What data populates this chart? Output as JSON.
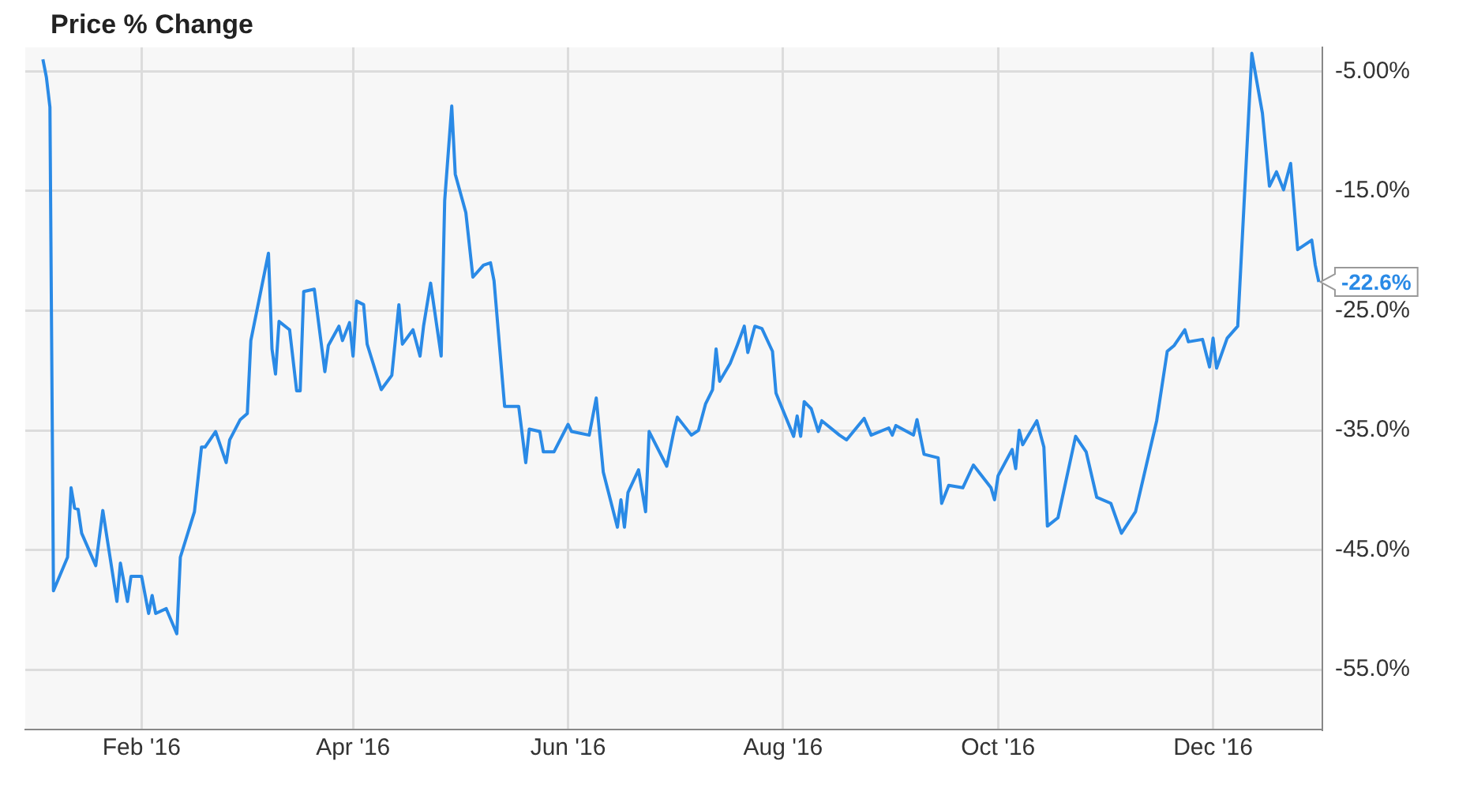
{
  "chart_data": {
    "type": "line",
    "title": "Price % Change",
    "x": [
      "2016-01-04",
      "2016-01-05",
      "2016-01-06",
      "2016-01-07",
      "2016-01-11",
      "2016-01-12",
      "2016-01-13",
      "2016-01-14",
      "2016-01-15",
      "2016-01-19",
      "2016-01-21",
      "2016-01-25",
      "2016-01-26",
      "2016-01-28",
      "2016-01-29",
      "2016-02-01",
      "2016-02-03",
      "2016-02-04",
      "2016-02-05",
      "2016-02-08",
      "2016-02-11",
      "2016-02-12",
      "2016-02-16",
      "2016-02-18",
      "2016-02-19",
      "2016-02-22",
      "2016-02-25",
      "2016-02-26",
      "2016-02-29",
      "2016-03-02",
      "2016-03-03",
      "2016-03-08",
      "2016-03-09",
      "2016-03-10",
      "2016-03-11",
      "2016-03-14",
      "2016-03-16",
      "2016-03-17",
      "2016-03-18",
      "2016-03-21",
      "2016-03-24",
      "2016-03-25",
      "2016-03-28",
      "2016-03-29",
      "2016-03-31",
      "2016-04-01",
      "2016-04-02",
      "2016-04-04",
      "2016-04-05",
      "2016-04-09",
      "2016-04-12",
      "2016-04-14",
      "2016-04-15",
      "2016-04-18",
      "2016-04-20",
      "2016-04-21",
      "2016-04-23",
      "2016-04-26",
      "2016-04-27",
      "2016-04-29",
      "2016-04-30",
      "2016-05-03",
      "2016-05-05",
      "2016-05-08",
      "2016-05-10",
      "2016-05-11",
      "2016-05-14",
      "2016-05-18",
      "2016-05-20",
      "2016-05-21",
      "2016-05-24",
      "2016-05-25",
      "2016-05-28",
      "2016-06-01",
      "2016-06-02",
      "2016-06-07",
      "2016-06-09",
      "2016-06-11",
      "2016-06-15",
      "2016-06-16",
      "2016-06-17",
      "2016-06-18",
      "2016-06-21",
      "2016-06-23",
      "2016-06-24",
      "2016-06-29",
      "2016-07-01",
      "2016-07-02",
      "2016-07-06",
      "2016-07-08",
      "2016-07-10",
      "2016-07-12",
      "2016-07-13",
      "2016-07-14",
      "2016-07-17",
      "2016-07-19",
      "2016-07-21",
      "2016-07-22",
      "2016-07-24",
      "2016-07-26",
      "2016-07-29",
      "2016-07-30",
      "2016-08-04",
      "2016-08-05",
      "2016-08-06",
      "2016-08-07",
      "2016-08-09",
      "2016-08-11",
      "2016-08-12",
      "2016-08-17",
      "2016-08-19",
      "2016-08-24",
      "2016-08-26",
      "2016-08-31",
      "2016-09-01",
      "2016-09-02",
      "2016-09-07",
      "2016-09-08",
      "2016-09-10",
      "2016-09-14",
      "2016-09-15",
      "2016-09-17",
      "2016-09-21",
      "2016-09-24",
      "2016-09-29",
      "2016-09-30",
      "2016-10-01",
      "2016-10-05",
      "2016-10-06",
      "2016-10-07",
      "2016-10-08",
      "2016-10-12",
      "2016-10-14",
      "2016-10-15",
      "2016-10-18",
      "2016-10-23",
      "2016-10-26",
      "2016-10-29",
      "2016-11-02",
      "2016-11-05",
      "2016-11-09",
      "2016-11-12",
      "2016-11-15",
      "2016-11-18",
      "2016-11-20",
      "2016-11-23",
      "2016-11-24",
      "2016-11-28",
      "2016-11-30",
      "2016-12-01",
      "2016-12-02",
      "2016-12-05",
      "2016-12-08",
      "2016-12-12",
      "2016-12-15",
      "2016-12-17",
      "2016-12-19",
      "2016-12-21",
      "2016-12-23",
      "2016-12-25",
      "2016-12-29",
      "2016-12-30",
      "2016-12-31"
    ],
    "series": [
      {
        "color": "#2a8ae6",
        "values": [
          -4.0,
          -5.5,
          -8.0,
          -48.4,
          -45.6,
          -39.8,
          -41.5,
          -41.6,
          -43.6,
          -46.3,
          -41.7,
          -49.3,
          -46.1,
          -49.3,
          -47.2,
          -47.2,
          -50.3,
          -48.8,
          -50.3,
          -49.9,
          -52.0,
          -45.6,
          -41.8,
          -36.4,
          -36.4,
          -35.1,
          -37.7,
          -35.8,
          -34.1,
          -33.6,
          -27.5,
          -20.2,
          -28.2,
          -30.3,
          -25.9,
          -26.6,
          -31.7,
          -31.7,
          -23.4,
          -23.2,
          -30.1,
          -27.9,
          -26.3,
          -27.5,
          -26.0,
          -28.8,
          -24.2,
          -24.5,
          -27.8,
          -31.6,
          -30.4,
          -24.5,
          -27.8,
          -26.6,
          -28.8,
          -26.3,
          -22.7,
          -28.8,
          -15.8,
          -7.9,
          -13.6,
          -16.8,
          -22.2,
          -21.2,
          -21.0,
          -22.5,
          -33.0,
          -33.0,
          -37.7,
          -34.9,
          -35.1,
          -36.8,
          -36.8,
          -34.5,
          -35.1,
          -35.4,
          -32.3,
          -38.5,
          -43.1,
          -40.8,
          -43.1,
          -40.2,
          -38.3,
          -41.8,
          -35.1,
          -38.0,
          -35.1,
          -33.9,
          -35.4,
          -35.0,
          -32.8,
          -31.6,
          -28.2,
          -30.9,
          -29.4,
          -27.9,
          -26.3,
          -28.5,
          -26.3,
          -26.5,
          -28.4,
          -31.9,
          -35.5,
          -33.8,
          -35.5,
          -32.6,
          -33.2,
          -35.1,
          -34.2,
          -35.4,
          -35.8,
          -34.0,
          -35.4,
          -34.8,
          -35.4,
          -34.6,
          -35.4,
          -34.1,
          -37.0,
          -37.3,
          -41.1,
          -39.6,
          -39.8,
          -37.9,
          -39.8,
          -40.8,
          -38.8,
          -36.6,
          -38.2,
          -35.0,
          -36.2,
          -34.2,
          -36.4,
          -43.0,
          -42.3,
          -35.5,
          -36.8,
          -40.6,
          -41.1,
          -43.6,
          -41.8,
          -38.0,
          -34.2,
          -28.4,
          -27.9,
          -26.6,
          -27.6,
          -27.4,
          -29.7,
          -27.3,
          -29.8,
          -27.3,
          -26.3,
          -3.5,
          -8.5,
          -14.6,
          -13.4,
          -14.9,
          -12.7,
          -19.9,
          -19.1,
          -21.2,
          -22.6
        ]
      }
    ],
    "xlim": [
      "2015-12-30",
      "2017-01-01"
    ],
    "xticks": [
      {
        "value": "2016-02-01",
        "label": "Feb '16"
      },
      {
        "value": "2016-04-01",
        "label": "Apr '16"
      },
      {
        "value": "2016-06-01",
        "label": "Jun '16"
      },
      {
        "value": "2016-08-01",
        "label": "Aug '16"
      },
      {
        "value": "2016-10-01",
        "label": "Oct '16"
      },
      {
        "value": "2016-12-01",
        "label": "Dec '16"
      }
    ],
    "ylim": [
      -60,
      -3
    ],
    "yticks": [
      {
        "value": -5,
        "label": "-5.00%"
      },
      {
        "value": -15,
        "label": "-15.0%"
      },
      {
        "value": -25,
        "label": "-25.0%"
      },
      {
        "value": -35,
        "label": "-35.0%"
      },
      {
        "value": -45,
        "label": "-45.0%"
      },
      {
        "value": -55,
        "label": "-55.0%"
      }
    ],
    "annotations": [
      {
        "text": "-22.6%",
        "x": "2016-12-31",
        "y": -22.6
      }
    ],
    "grid": true,
    "legend": false,
    "marker": "none",
    "line_style": "solid"
  }
}
